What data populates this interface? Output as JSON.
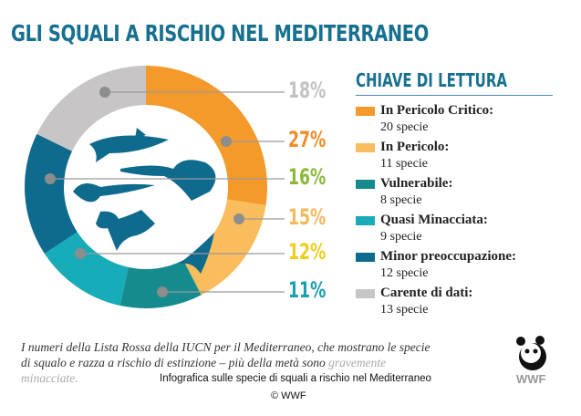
{
  "title": "GLI SQUALI A RISCHIO NEL MEDITERRANEO",
  "legend_title": "CHIAVE DI LETTURA",
  "chart_data": {
    "type": "pie",
    "title": "GLI SQUALI A RISCHIO NEL MEDITERRANEO",
    "categories": [
      "In Pericolo Critico",
      "In Pericolo",
      "Vulnerabile",
      "Quasi Minacciata",
      "Minor preoccupazione",
      "Carente di dati"
    ],
    "values": [
      20,
      11,
      8,
      9,
      12,
      13
    ],
    "colors": [
      "#f39a2b",
      "#f9bd5d",
      "#168b8e",
      "#18abb8",
      "#0f6b8d",
      "#c7c5c5"
    ]
  },
  "percent_labels": [
    {
      "text": "18%",
      "color": "#c2c2c2"
    },
    {
      "text": "27%",
      "color": "#ef8d2a"
    },
    {
      "text": "16%",
      "color": "#8cb83a"
    },
    {
      "text": "15%",
      "color": "#f7b95c"
    },
    {
      "text": "12%",
      "color": "#efcd1c"
    },
    {
      "text": "11%",
      "color": "#1a9fb2"
    }
  ],
  "legend": [
    {
      "label": "In Pericolo Critico:",
      "count": "20 specie",
      "color": "#f39a2b"
    },
    {
      "label": "In Pericolo:",
      "count": "11 specie",
      "color": "#f9bd5d"
    },
    {
      "label": "Vulnerabile:",
      "count": "8 specie",
      "color": "#168b8e"
    },
    {
      "label": "Quasi Minacciata:",
      "count": "9 specie",
      "color": "#18abb8"
    },
    {
      "label": "Minor preoccupazione:",
      "count": "12 specie",
      "color": "#0f6b8d"
    },
    {
      "label": "Carente di dati:",
      "count": "13 specie",
      "color": "#c7c5c5"
    }
  ],
  "caption": {
    "main": "I numeri della Lista Rossa della IUCN per il Mediterraneo, che mostrano le specie di squalo e razza a rischio di estinzione – più della metà sono",
    "faint": "gravemente minacciate."
  },
  "image_caption": "Infografica sulle specie di squali a rischio nel Mediterraneo",
  "copyright": "© WWF",
  "logo_text": "WWF"
}
